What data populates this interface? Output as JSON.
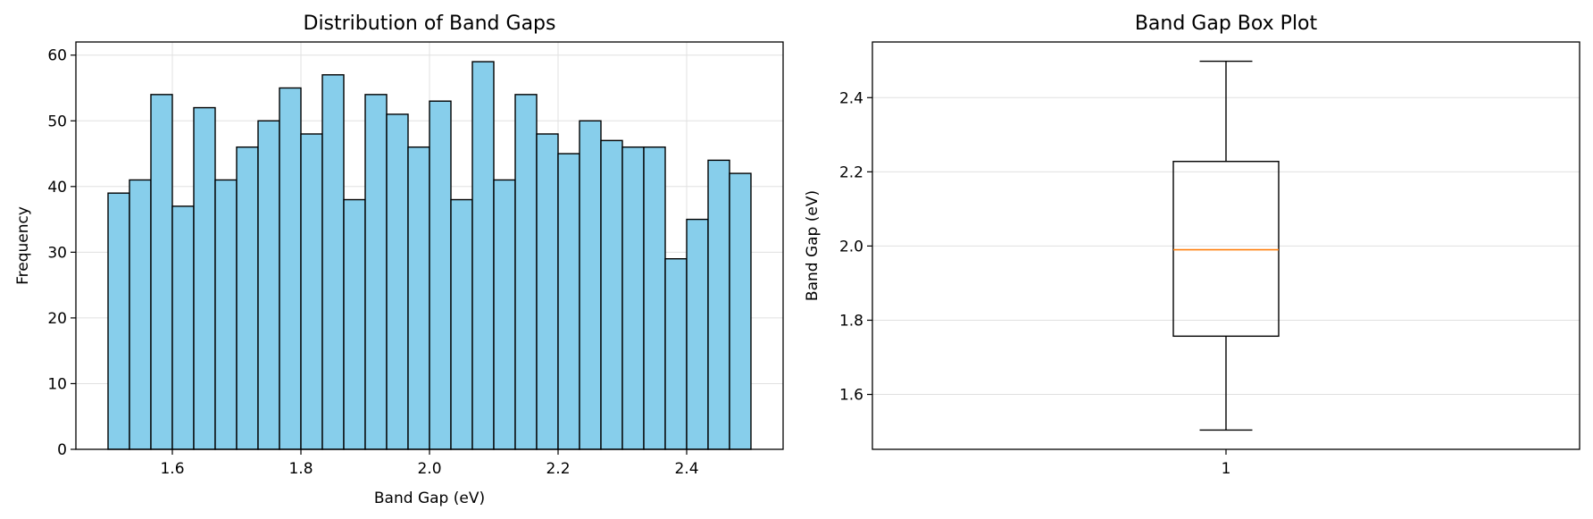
{
  "chart_data": [
    {
      "type": "bar",
      "subtype": "histogram",
      "title": "Distribution of Band Gaps",
      "xlabel": "Band Gap (eV)",
      "ylabel": "Frequency",
      "bin_range": [
        1.5,
        2.5
      ],
      "bin_count": 30,
      "values": [
        39,
        41,
        54,
        37,
        52,
        41,
        46,
        50,
        55,
        48,
        57,
        38,
        54,
        51,
        46,
        53,
        38,
        59,
        41,
        54,
        48,
        45,
        50,
        47,
        46,
        46,
        29,
        35,
        44,
        42
      ],
      "xlim": [
        1.45,
        2.55
      ],
      "ylim": [
        0,
        62
      ],
      "xticks": [
        "1.6",
        "1.8",
        "2.0",
        "2.2",
        "2.4"
      ],
      "yticks": [
        "0",
        "10",
        "20",
        "30",
        "40",
        "50",
        "60"
      ],
      "bar_color": "#87ceeb",
      "edge_color": "#000000",
      "grid": true
    },
    {
      "type": "box",
      "title": "Band Gap Box Plot",
      "xlabel": "",
      "ylabel": "Band Gap (eV)",
      "categories": [
        "1"
      ],
      "box": {
        "whisker_low": 1.504,
        "q1": 1.757,
        "median": 1.99,
        "q3": 2.228,
        "whisker_high": 2.498
      },
      "ylim": [
        1.452,
        2.55
      ],
      "yticks": [
        "1.6",
        "1.8",
        "2.0",
        "2.2",
        "2.4"
      ],
      "median_color": "#ff7f0e",
      "grid": true
    }
  ]
}
